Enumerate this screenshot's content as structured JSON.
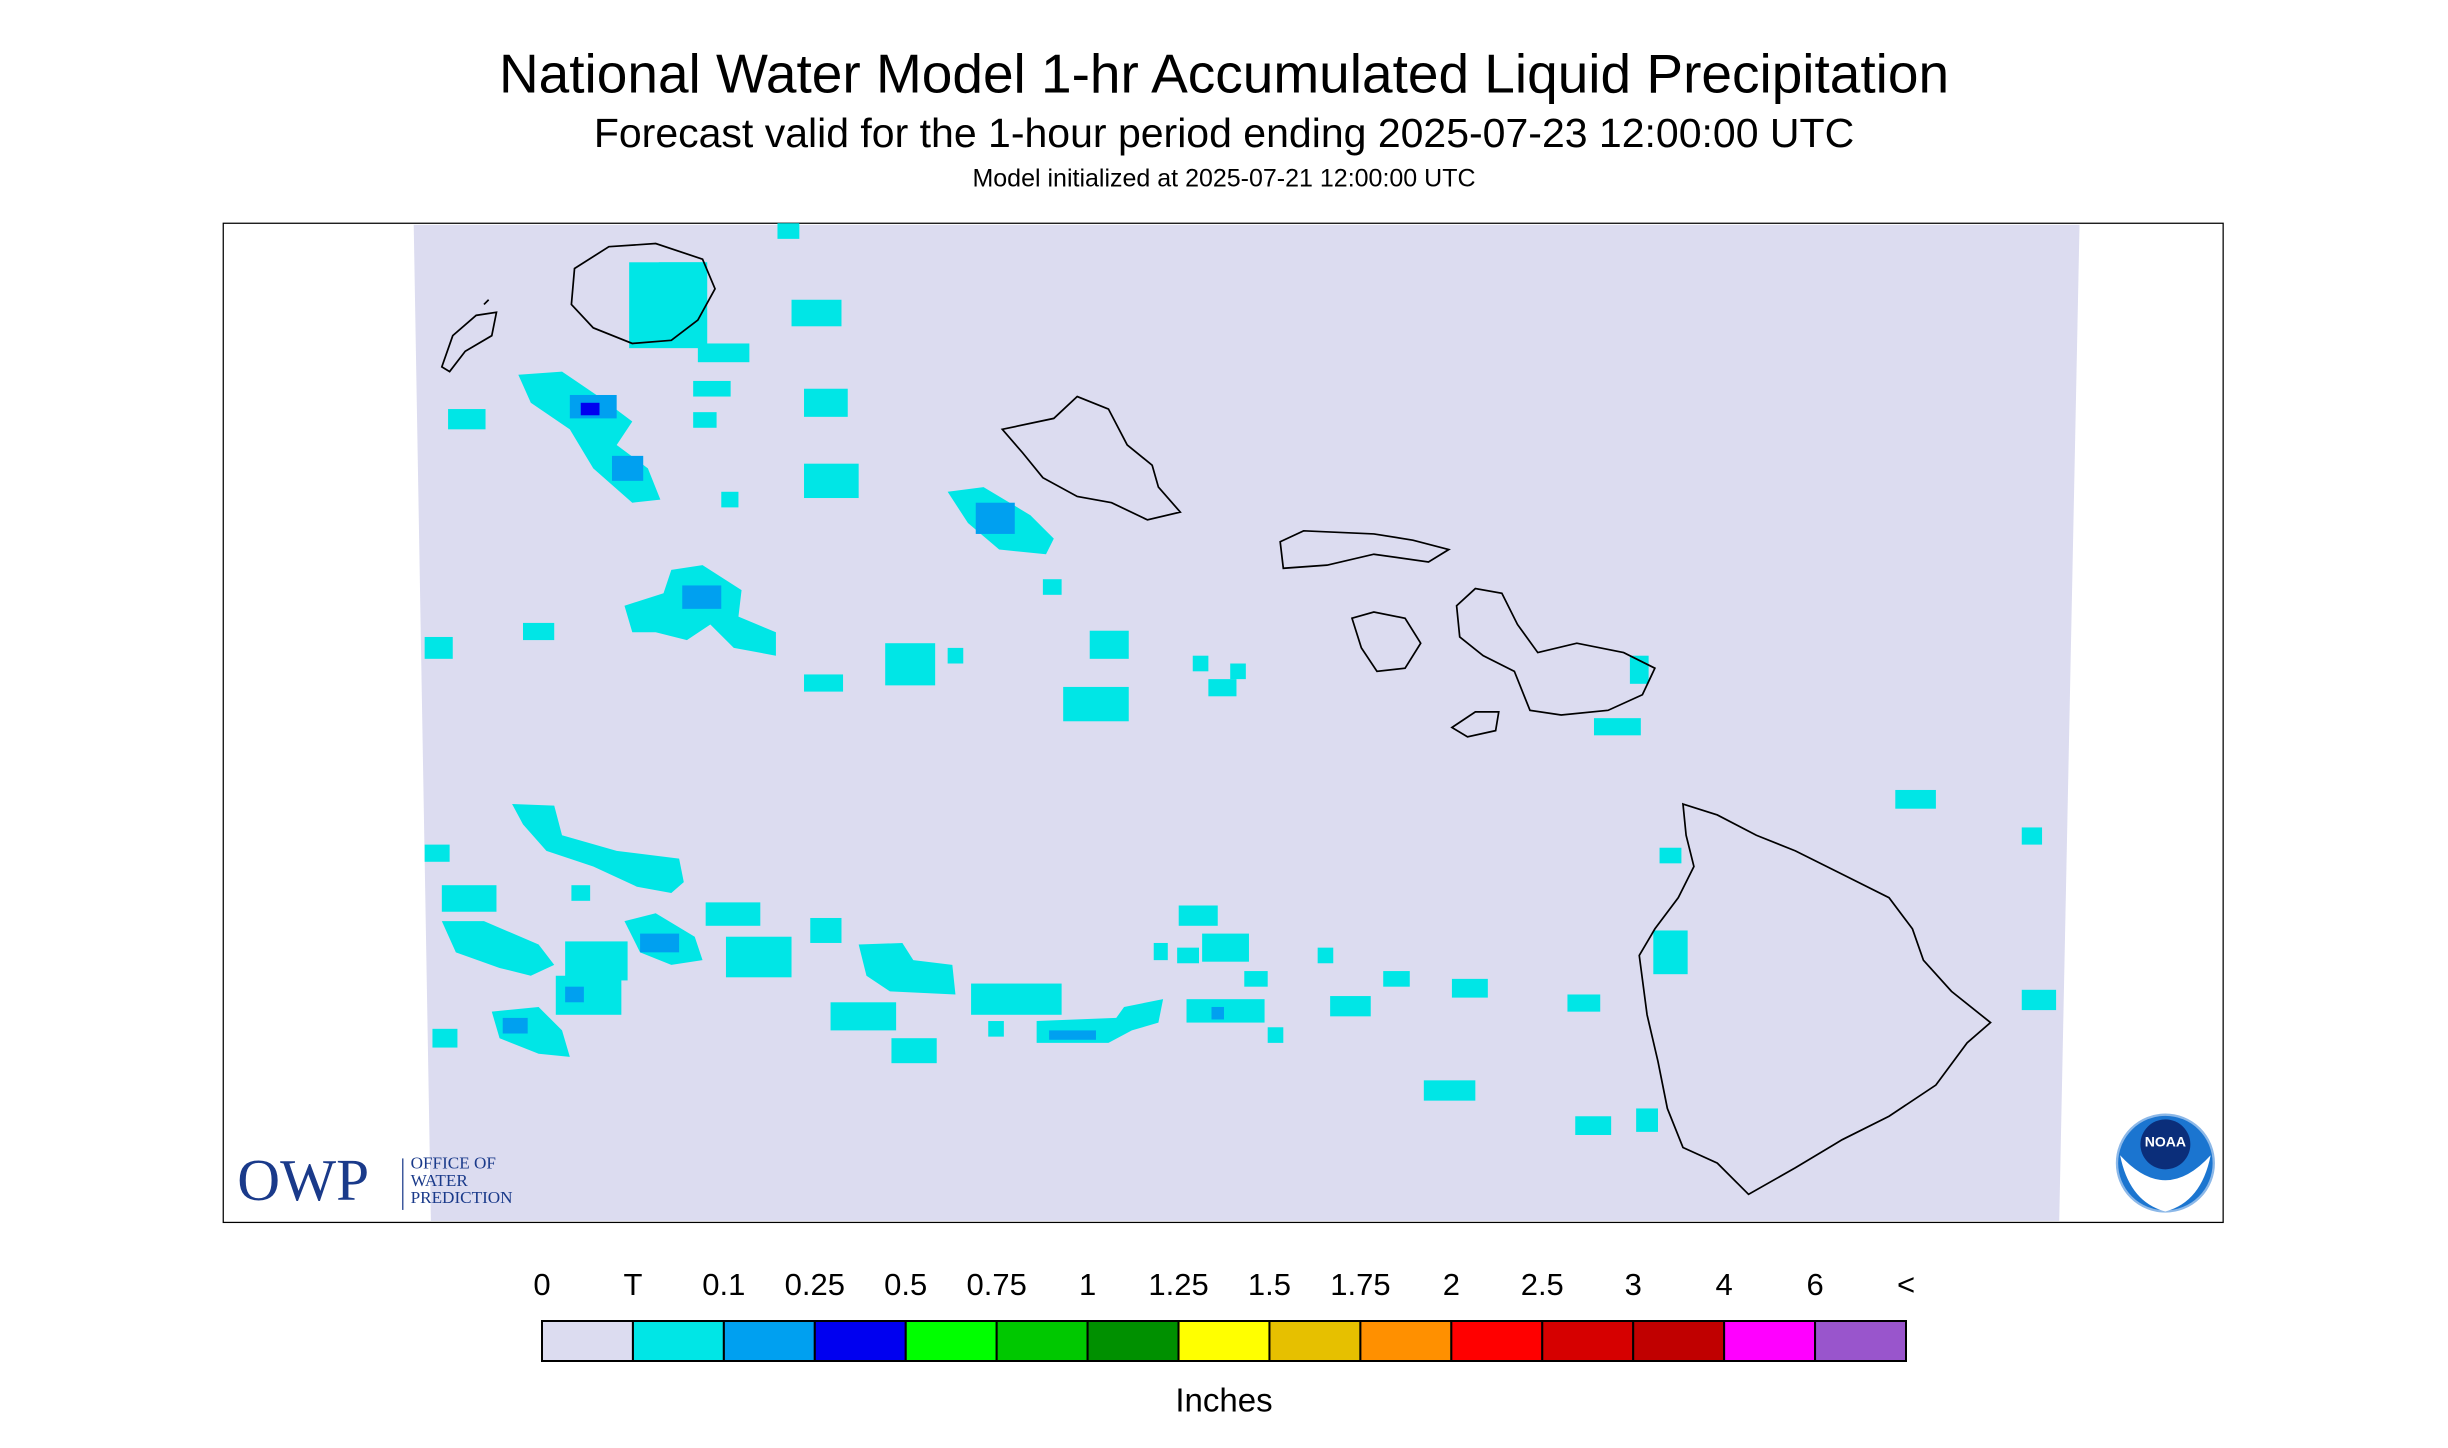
{
  "header": {
    "title": "National Water Model 1-hr Accumulated Liquid Precipitation",
    "subtitle": "Forecast valid for the 1-hour period ending 2025-07-23 12:00:00 UTC",
    "init": "Model initialized at 2025-07-21 12:00:00 UTC"
  },
  "legend": {
    "labels": [
      "0",
      "T",
      "0.1",
      "0.25",
      "0.5",
      "0.75",
      "1",
      "1.25",
      "1.5",
      "1.75",
      "2",
      "2.5",
      "3",
      "4",
      "6",
      "<"
    ],
    "colors": [
      "#dcdcf0",
      "#00e6e6",
      "#00a0f0",
      "#0000f0",
      "#00ff00",
      "#00c800",
      "#009000",
      "#ffff00",
      "#e6c000",
      "#ff9000",
      "#ff0000",
      "#d60000",
      "#c00000",
      "#ff00ff",
      "#9955cc"
    ],
    "unit": "Inches"
  },
  "logos": {
    "owp": "OWP",
    "owp_lines": [
      "OFFICE OF",
      "WATER",
      "PREDICTION"
    ],
    "noaa": "NOAA"
  }
}
